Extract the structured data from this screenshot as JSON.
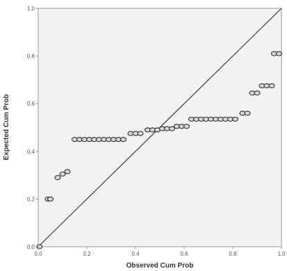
{
  "chart_data": {
    "type": "scatter",
    "title": "",
    "xlabel": "Observed Cum Prob",
    "ylabel": "Expected Cum Prob",
    "xlim": [
      0,
      1
    ],
    "ylim": [
      0,
      1
    ],
    "xticks": [
      "0.0",
      "0.2",
      "0.4",
      "0.6",
      "0.8",
      "1.0"
    ],
    "yticks": [
      "0.0",
      "0.2",
      "0.4",
      "0.6",
      "0.8",
      "1.0"
    ],
    "grid": false,
    "reference_line": {
      "from": [
        0,
        0
      ],
      "to": [
        1,
        1
      ]
    },
    "colors": {
      "plot_bg": "#f2f2f2",
      "marker_fill": "#d8d8d8",
      "marker_stroke": "#2e2e2e",
      "line": "#3a3a3a"
    },
    "series": [
      {
        "points": [
          [
            0.005,
            0.0
          ],
          [
            0.04,
            0.2
          ],
          [
            0.05,
            0.2
          ],
          [
            0.08,
            0.29
          ],
          [
            0.1,
            0.305
          ],
          [
            0.12,
            0.315
          ],
          [
            0.15,
            0.45
          ],
          [
            0.17,
            0.45
          ],
          [
            0.19,
            0.45
          ],
          [
            0.21,
            0.45
          ],
          [
            0.23,
            0.45
          ],
          [
            0.25,
            0.45
          ],
          [
            0.27,
            0.45
          ],
          [
            0.29,
            0.45
          ],
          [
            0.31,
            0.45
          ],
          [
            0.33,
            0.45
          ],
          [
            0.35,
            0.45
          ],
          [
            0.38,
            0.475
          ],
          [
            0.4,
            0.475
          ],
          [
            0.42,
            0.475
          ],
          [
            0.45,
            0.49
          ],
          [
            0.47,
            0.49
          ],
          [
            0.49,
            0.49
          ],
          [
            0.51,
            0.495
          ],
          [
            0.53,
            0.495
          ],
          [
            0.55,
            0.495
          ],
          [
            0.57,
            0.505
          ],
          [
            0.59,
            0.505
          ],
          [
            0.61,
            0.505
          ],
          [
            0.63,
            0.535
          ],
          [
            0.65,
            0.535
          ],
          [
            0.67,
            0.535
          ],
          [
            0.69,
            0.535
          ],
          [
            0.71,
            0.535
          ],
          [
            0.73,
            0.535
          ],
          [
            0.75,
            0.535
          ],
          [
            0.77,
            0.535
          ],
          [
            0.79,
            0.535
          ],
          [
            0.81,
            0.535
          ],
          [
            0.84,
            0.56
          ],
          [
            0.86,
            0.56
          ],
          [
            0.88,
            0.645
          ],
          [
            0.9,
            0.645
          ],
          [
            0.92,
            0.675
          ],
          [
            0.94,
            0.675
          ],
          [
            0.96,
            0.675
          ],
          [
            0.97,
            0.81
          ],
          [
            0.99,
            0.81
          ]
        ]
      }
    ]
  }
}
